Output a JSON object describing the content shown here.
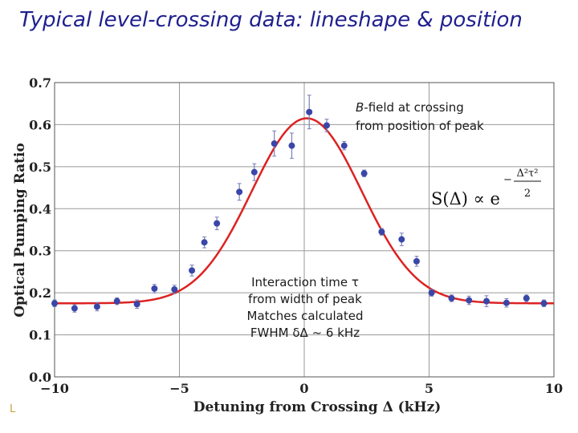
{
  "slide": {
    "title": "Typical level-crossing data: lineshape & position",
    "corner_mark": "L"
  },
  "chart_data": {
    "type": "scatter",
    "xlabel": "Detuning from Crossing  Δ (kHz)",
    "ylabel": "Optical Pumping Ratio",
    "xlim": [
      -10,
      10
    ],
    "ylim": [
      0,
      0.7
    ],
    "x_ticks": [
      -10,
      -5,
      0,
      5,
      10
    ],
    "x_tick_labels": [
      "−10",
      "−5",
      "0",
      "5",
      "10"
    ],
    "y_ticks": [
      0,
      0.1,
      0.2,
      0.3,
      0.4,
      0.5,
      0.6,
      0.7
    ],
    "y_tick_labels": [
      "0.0",
      "0.1",
      "0.2",
      "0.3",
      "0.4",
      "0.5",
      "0.6",
      "0.7"
    ],
    "grid": true,
    "colors": {
      "points": "#3a46a8",
      "fit": "#dd2222",
      "grid": "#9a9a9a"
    },
    "series": [
      {
        "kind": "points",
        "x": [
          -10,
          -9.2,
          -8.3,
          -7.5,
          -6.7,
          -6.0,
          -5.2,
          -4.5,
          -4.0,
          -3.5,
          -2.6,
          -2.0,
          -1.2,
          -0.5,
          0.2,
          0.9,
          1.6,
          2.4,
          3.1,
          3.9,
          4.5,
          5.1,
          5.9,
          6.6,
          7.3,
          8.1,
          8.9,
          9.6
        ],
        "y": [
          0.175,
          0.163,
          0.167,
          0.18,
          0.173,
          0.21,
          0.208,
          0.253,
          0.32,
          0.365,
          0.44,
          0.487,
          0.555,
          0.55,
          0.63,
          0.598,
          0.55,
          0.484,
          0.345,
          0.327,
          0.275,
          0.2,
          0.187,
          0.182,
          0.18,
          0.176,
          0.187,
          0.175
        ],
        "err": [
          0.008,
          0.009,
          0.01,
          0.008,
          0.01,
          0.01,
          0.01,
          0.013,
          0.013,
          0.015,
          0.02,
          0.02,
          0.03,
          0.03,
          0.04,
          0.015,
          0.01,
          0.008,
          0.008,
          0.015,
          0.012,
          0.008,
          0.008,
          0.01,
          0.013,
          0.01,
          0.008,
          0.008
        ]
      },
      {
        "kind": "fit",
        "model": "gaussian",
        "baseline": 0.175,
        "amplitude": 0.44,
        "center": 0.1,
        "sigma": 2.2
      }
    ],
    "annotations": {
      "bfield_prefix": "B",
      "bfield_line1": "-field at crossing",
      "bfield_line2": "from position of peak",
      "interaction_line1": "Interaction time τ",
      "interaction_line2": "from width of peak",
      "interaction_line3": "Matches calculated",
      "interaction_line4": "FWHM δΔ ~ 6 kHz",
      "formula_lhs": "S(Δ) ∝ e",
      "formula_num": "Δ²τ²",
      "formula_minus": "−",
      "formula_den": "2"
    }
  }
}
